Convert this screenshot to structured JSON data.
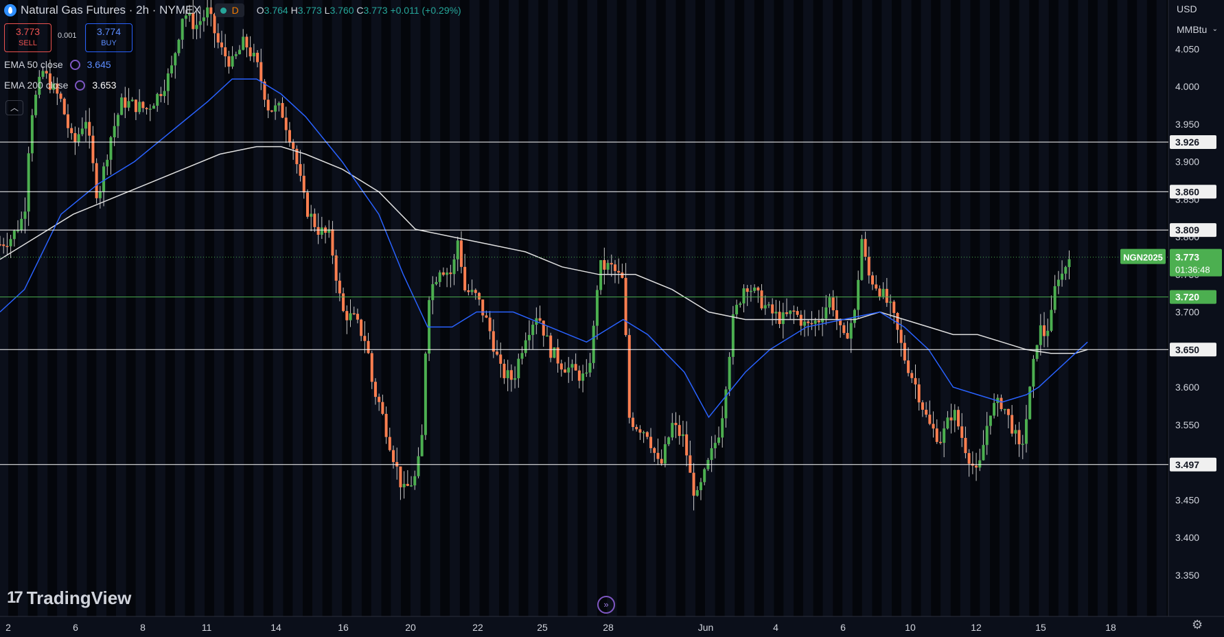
{
  "header": {
    "title": "Natural Gas Futures · 2h · NYMEX",
    "interval_badge": "D",
    "ohlc": {
      "o_label": "O",
      "o": "3.764",
      "h_label": "H",
      "h": "3.773",
      "l_label": "L",
      "l": "3.760",
      "c_label": "C",
      "c": "3.773",
      "change": "+0.011 (+0.29%)"
    }
  },
  "trade": {
    "sell_price": "3.773",
    "sell_label": "SELL",
    "spread": "0.001",
    "buy_price": "3.774",
    "buy_label": "BUY"
  },
  "indicators": [
    {
      "name": "EMA 50 close",
      "value": "3.645",
      "color": "#2962ff"
    },
    {
      "name": "EMA 200 close",
      "value": "3.653",
      "color": "#ffffff"
    }
  ],
  "axis_controls": {
    "currency": "USD",
    "unit": "MMBtu"
  },
  "brand": "TradingView",
  "icons": {
    "logo": "flame-icon",
    "collapse": "chevron-up-icon",
    "goto": "scroll-to-realtime-icon",
    "settings": "gear-icon"
  },
  "chart_data": {
    "type": "candlestick",
    "symbol_tag": "NGN2025",
    "last_price": "3.773",
    "countdown": "01:36:48",
    "ylim": [
      3.3,
      4.1
    ],
    "y_ticks": [
      "3.350",
      "3.400",
      "3.450",
      "3.500",
      "3.550",
      "3.600",
      "3.650",
      "3.700",
      "3.750",
      "3.800",
      "3.850",
      "3.900",
      "3.950",
      "4.000",
      "4.050"
    ],
    "x_ticks": [
      "2",
      "6",
      "8",
      "11",
      "14",
      "16",
      "20",
      "22",
      "25",
      "28",
      "Jun",
      "4",
      "6",
      "10",
      "12",
      "15",
      "18"
    ],
    "horizontal_lines": [
      {
        "value": 3.926,
        "label": "3.926",
        "color": "#ffffff"
      },
      {
        "value": 3.86,
        "label": "3.860",
        "color": "#ffffff"
      },
      {
        "value": 3.809,
        "label": "3.809",
        "color": "#ffffff"
      },
      {
        "value": 3.72,
        "label": "3.720",
        "color": "#4caf50"
      },
      {
        "value": 3.65,
        "label": "3.650",
        "color": "#ffffff"
      },
      {
        "value": 3.497,
        "label": "3.497",
        "color": "#ffffff"
      }
    ],
    "ema50_path": [
      [
        0,
        3.7
      ],
      [
        0.02,
        3.73
      ],
      [
        0.05,
        3.83
      ],
      [
        0.08,
        3.87
      ],
      [
        0.11,
        3.9
      ],
      [
        0.14,
        3.94
      ],
      [
        0.17,
        3.98
      ],
      [
        0.19,
        4.01
      ],
      [
        0.21,
        4.01
      ],
      [
        0.23,
        3.99
      ],
      [
        0.25,
        3.96
      ],
      [
        0.28,
        3.9
      ],
      [
        0.31,
        3.83
      ],
      [
        0.33,
        3.75
      ],
      [
        0.35,
        3.68
      ],
      [
        0.37,
        3.68
      ],
      [
        0.39,
        3.7
      ],
      [
        0.42,
        3.7
      ],
      [
        0.45,
        3.68
      ],
      [
        0.48,
        3.66
      ],
      [
        0.5,
        3.68
      ],
      [
        0.51,
        3.69
      ],
      [
        0.53,
        3.67
      ],
      [
        0.56,
        3.62
      ],
      [
        0.58,
        3.56
      ],
      [
        0.59,
        3.58
      ],
      [
        0.61,
        3.62
      ],
      [
        0.63,
        3.65
      ],
      [
        0.66,
        3.68
      ],
      [
        0.69,
        3.69
      ],
      [
        0.72,
        3.7
      ],
      [
        0.74,
        3.68
      ],
      [
        0.76,
        3.65
      ],
      [
        0.78,
        3.6
      ],
      [
        0.8,
        3.59
      ],
      [
        0.82,
        3.58
      ],
      [
        0.84,
        3.59
      ],
      [
        0.85,
        3.6
      ],
      [
        0.87,
        3.63
      ],
      [
        0.89,
        3.66
      ]
    ],
    "ema200_path": [
      [
        0,
        3.77
      ],
      [
        0.03,
        3.8
      ],
      [
        0.06,
        3.83
      ],
      [
        0.09,
        3.85
      ],
      [
        0.12,
        3.87
      ],
      [
        0.15,
        3.89
      ],
      [
        0.18,
        3.91
      ],
      [
        0.21,
        3.92
      ],
      [
        0.23,
        3.92
      ],
      [
        0.25,
        3.91
      ],
      [
        0.28,
        3.89
      ],
      [
        0.31,
        3.86
      ],
      [
        0.34,
        3.81
      ],
      [
        0.37,
        3.8
      ],
      [
        0.4,
        3.79
      ],
      [
        0.43,
        3.78
      ],
      [
        0.46,
        3.76
      ],
      [
        0.49,
        3.75
      ],
      [
        0.52,
        3.75
      ],
      [
        0.55,
        3.73
      ],
      [
        0.58,
        3.7
      ],
      [
        0.61,
        3.69
      ],
      [
        0.64,
        3.69
      ],
      [
        0.67,
        3.69
      ],
      [
        0.7,
        3.69
      ],
      [
        0.72,
        3.7
      ],
      [
        0.74,
        3.69
      ],
      [
        0.76,
        3.68
      ],
      [
        0.78,
        3.67
      ],
      [
        0.8,
        3.67
      ],
      [
        0.82,
        3.66
      ],
      [
        0.84,
        3.65
      ],
      [
        0.86,
        3.645
      ],
      [
        0.88,
        3.645
      ],
      [
        0.89,
        3.65
      ]
    ],
    "price_path": [
      [
        0,
        3.79
      ],
      [
        0.01,
        3.8
      ],
      [
        0.02,
        3.83
      ],
      [
        0.025,
        3.96
      ],
      [
        0.035,
        4.02
      ],
      [
        0.05,
        3.98
      ],
      [
        0.06,
        3.92
      ],
      [
        0.07,
        3.96
      ],
      [
        0.08,
        3.85
      ],
      [
        0.09,
        3.93
      ],
      [
        0.1,
        3.98
      ],
      [
        0.12,
        3.97
      ],
      [
        0.13,
        3.99
      ],
      [
        0.14,
        4.02
      ],
      [
        0.15,
        4.1
      ],
      [
        0.16,
        4.08
      ],
      [
        0.17,
        4.1
      ],
      [
        0.18,
        4.05
      ],
      [
        0.19,
        4.03
      ],
      [
        0.2,
        4.06
      ],
      [
        0.21,
        4.03
      ],
      [
        0.22,
        3.97
      ],
      [
        0.23,
        3.97
      ],
      [
        0.24,
        3.92
      ],
      [
        0.25,
        3.84
      ],
      [
        0.26,
        3.81
      ],
      [
        0.27,
        3.8
      ],
      [
        0.275,
        3.75
      ],
      [
        0.28,
        3.7
      ],
      [
        0.29,
        3.69
      ],
      [
        0.3,
        3.66
      ],
      [
        0.305,
        3.6
      ],
      [
        0.31,
        3.58
      ],
      [
        0.32,
        3.52
      ],
      [
        0.33,
        3.46
      ],
      [
        0.34,
        3.48
      ],
      [
        0.345,
        3.52
      ],
      [
        0.35,
        3.72
      ],
      [
        0.36,
        3.76
      ],
      [
        0.37,
        3.75
      ],
      [
        0.375,
        3.8
      ],
      [
        0.38,
        3.73
      ],
      [
        0.39,
        3.72
      ],
      [
        0.4,
        3.68
      ],
      [
        0.41,
        3.62
      ],
      [
        0.42,
        3.61
      ],
      [
        0.43,
        3.67
      ],
      [
        0.44,
        3.7
      ],
      [
        0.45,
        3.65
      ],
      [
        0.46,
        3.63
      ],
      [
        0.47,
        3.62
      ],
      [
        0.48,
        3.61
      ],
      [
        0.485,
        3.66
      ],
      [
        0.49,
        3.76
      ],
      [
        0.5,
        3.76
      ],
      [
        0.505,
        3.75
      ],
      [
        0.51,
        3.74
      ],
      [
        0.515,
        3.56
      ],
      [
        0.52,
        3.55
      ],
      [
        0.53,
        3.54
      ],
      [
        0.54,
        3.49
      ],
      [
        0.55,
        3.55
      ],
      [
        0.56,
        3.53
      ],
      [
        0.565,
        3.48
      ],
      [
        0.57,
        3.45
      ],
      [
        0.58,
        3.5
      ],
      [
        0.59,
        3.55
      ],
      [
        0.6,
        3.69
      ],
      [
        0.61,
        3.74
      ],
      [
        0.62,
        3.72
      ],
      [
        0.63,
        3.7
      ],
      [
        0.64,
        3.69
      ],
      [
        0.65,
        3.7
      ],
      [
        0.66,
        3.68
      ],
      [
        0.67,
        3.69
      ],
      [
        0.68,
        3.72
      ],
      [
        0.69,
        3.66
      ],
      [
        0.7,
        3.7
      ],
      [
        0.705,
        3.8
      ],
      [
        0.71,
        3.75
      ],
      [
        0.72,
        3.73
      ],
      [
        0.73,
        3.7
      ],
      [
        0.74,
        3.64
      ],
      [
        0.75,
        3.6
      ],
      [
        0.76,
        3.55
      ],
      [
        0.77,
        3.53
      ],
      [
        0.78,
        3.57
      ],
      [
        0.79,
        3.52
      ],
      [
        0.8,
        3.48
      ],
      [
        0.81,
        3.57
      ],
      [
        0.82,
        3.58
      ],
      [
        0.83,
        3.54
      ],
      [
        0.835,
        3.51
      ],
      [
        0.84,
        3.56
      ],
      [
        0.85,
        3.68
      ],
      [
        0.855,
        3.67
      ],
      [
        0.86,
        3.69
      ],
      [
        0.865,
        3.75
      ],
      [
        0.87,
        3.75
      ],
      [
        0.875,
        3.78
      ]
    ]
  }
}
